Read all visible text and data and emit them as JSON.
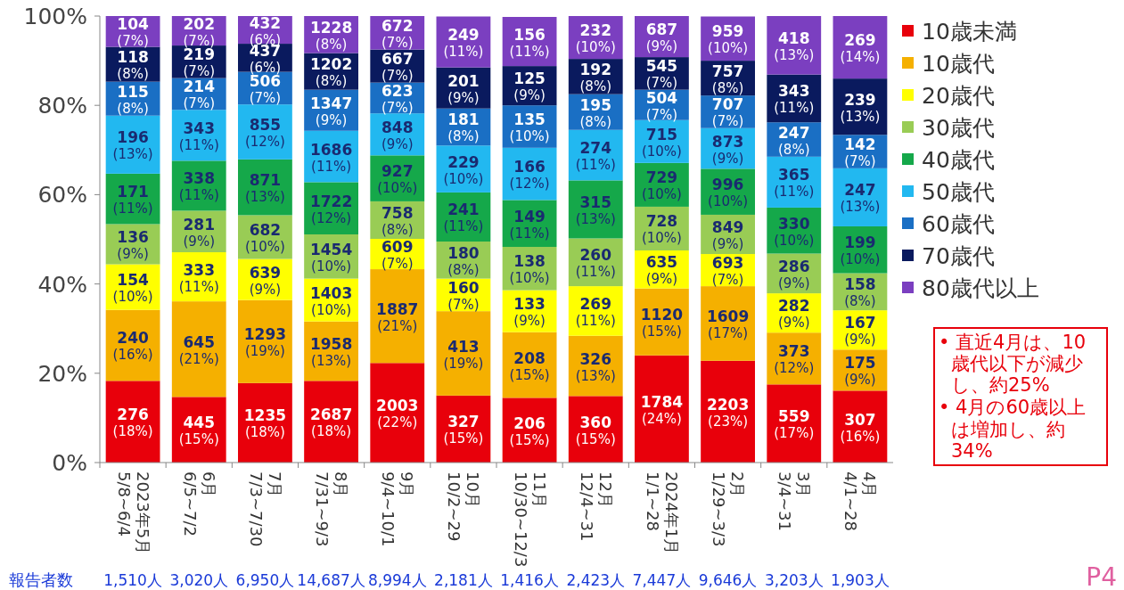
{
  "chart_data": {
    "type": "bar",
    "stacked": true,
    "data_labels": false,
    "legend": "top right",
    "grid": false,
    "categories": [
      "2023年5月\n5/8~6/4",
      "6月\n6/5~7/2",
      "7月\n7/3~7/30",
      "8月\n7/31~9/3",
      "9月\n9/4~10/1",
      "10月\n10/2~29",
      "11月\n10/30~12/3",
      "12月\n12/4~31",
      "2024年1月\n1/1~28",
      "2月\n1/29~3/3",
      "3月\n3/4~31",
      "4月\n4/1~28"
    ],
    "ylim": [
      0,
      100
    ],
    "yticks": [
      {
        "value": 0,
        "label": "0%"
      },
      {
        "value": 20,
        "label": "20%"
      },
      {
        "value": 40,
        "label": "40%"
      },
      {
        "value": 60,
        "label": "60%"
      },
      {
        "value": 80,
        "label": "80%"
      },
      {
        "value": 100,
        "label": "100%"
      }
    ],
    "series": [
      {
        "name": "10歳未満",
        "color": "#e8000b",
        "values": [
          18.3,
          14.7,
          17.8,
          18.3,
          22.3,
          15.0,
          14.5,
          14.9,
          24.0,
          22.8,
          17.5,
          16.1
        ],
        "value_labels": [
          "276 (18%)",
          "445 (15%)",
          "1235 (18%)",
          "2687 (18%)",
          "2003 (22%)",
          "327 (15%)",
          "206 (15%)",
          "360 (15%)",
          "1784 (24%)",
          "2203 (23%)",
          "559 (17%)",
          "307 (16%)"
        ]
      },
      {
        "name": "10歳代",
        "color": "#f5b000",
        "values": [
          15.9,
          21.4,
          18.6,
          13.3,
          21.0,
          18.9,
          14.7,
          13.5,
          15.0,
          16.7,
          11.6,
          9.2
        ],
        "value_labels": [
          "240 (16%)",
          "645 (21%)",
          "1293 (19%)",
          "1958 (13%)",
          "1887 (21%)",
          "413 (19%)",
          "208 (15%)",
          "326 (13%)",
          "1120 (15%)",
          "1609 (17%)",
          "373 (12%)",
          "175 (9%)"
        ]
      },
      {
        "name": "20歳代",
        "color": "#ffff00",
        "values": [
          10.2,
          11.0,
          9.2,
          9.6,
          6.8,
          7.3,
          9.4,
          11.1,
          8.5,
          7.2,
          8.8,
          8.8
        ],
        "value_labels": [
          "154 (10%)",
          "333 (11%)",
          "639 (9%)",
          "1403 (10%)",
          "609 (7%)",
          "160 (7%)",
          "133 (9%)",
          "269 (11%)",
          "635 (9%)",
          "693 (7%)",
          "282 (9%)",
          "167 (9%)"
        ]
      },
      {
        "name": "30歳代",
        "color": "#99cc55",
        "values": [
          9.0,
          9.3,
          9.8,
          9.9,
          8.4,
          8.3,
          9.7,
          10.7,
          9.8,
          8.8,
          8.9,
          8.3
        ],
        "value_labels": [
          "136 (9%)",
          "281 (9%)",
          "682 (10%)",
          "1454 (10%)",
          "758 (8%)",
          "180 (8%)",
          "138 (10%)",
          "260 (11%)",
          "728 (10%)",
          "849 (9%)",
          "286 (9%)",
          "158 (8%)"
        ]
      },
      {
        "name": "40歳代",
        "color": "#15a84a",
        "values": [
          11.3,
          11.2,
          12.5,
          11.7,
          10.3,
          11.0,
          10.5,
          13.0,
          9.8,
          10.3,
          10.3,
          10.5
        ],
        "value_labels": [
          "171 (11%)",
          "338 (11%)",
          "871 (13%)",
          "1722 (12%)",
          "927 (10%)",
          "241 (11%)",
          "149 (11%)",
          "315 (13%)",
          "729 (10%)",
          "996 (10%)",
          "330 (10%)",
          "199 (10%)"
        ]
      },
      {
        "name": "50歳代",
        "color": "#22b8f0",
        "values": [
          13.0,
          11.4,
          12.3,
          11.5,
          9.4,
          10.5,
          11.7,
          11.3,
          9.6,
          9.1,
          11.4,
          13.0
        ],
        "value_labels": [
          "196 (13%)",
          "343 (11%)",
          "855 (12%)",
          "1686 (11%)",
          "848 (9%)",
          "229 (10%)",
          "166 (12%)",
          "274 (11%)",
          "715 (10%)",
          "873 (9%)",
          "365 (11%)",
          "247 (13%)"
        ]
      },
      {
        "name": "60歳代",
        "color": "#1a6fc4",
        "values": [
          7.6,
          7.1,
          7.3,
          9.2,
          6.9,
          8.3,
          9.5,
          8.0,
          6.8,
          7.3,
          7.7,
          7.5
        ],
        "value_labels": [
          "115 (8%)",
          "214 (7%)",
          "506 (7%)",
          "1347 (9%)",
          "623 (7%)",
          "181 (8%)",
          "135 (10%)",
          "195 (8%)",
          "504 (7%)",
          "707 (7%)",
          "247 (8%)",
          "142 (7%)"
        ]
      },
      {
        "name": "70歳代",
        "color": "#0a1a5e",
        "values": [
          7.8,
          7.3,
          6.3,
          8.2,
          7.4,
          9.2,
          8.8,
          7.9,
          7.3,
          7.8,
          10.7,
          12.6
        ],
        "value_labels": [
          "118 (8%)",
          "219 (7%)",
          "437 (6%)",
          "1202 (8%)",
          "667 (7%)",
          "201 (9%)",
          "125 (9%)",
          "192 (8%)",
          "545 (7%)",
          "757 (8%)",
          "343 (11%)",
          "239 (13%)"
        ]
      },
      {
        "name": "80歳代以上",
        "color": "#7b3fc0",
        "values": [
          6.9,
          6.6,
          6.2,
          8.3,
          7.5,
          11.4,
          11.0,
          9.6,
          9.2,
          9.9,
          13.1,
          14.0
        ],
        "value_labels": [
          "104 (7%)",
          "202 (7%)",
          "432 (6%)",
          "1228 (8%)",
          "672 (7%)",
          "249 (11%)",
          "156 (11%)",
          "232 (10%)",
          "687 (9%)",
          "959 (10%)",
          "418 (13%)",
          "269 (14%)"
        ]
      }
    ],
    "annotations": [
      "報告者数",
      "• 直近4月は、10歳代以下が減少し、約25%",
      "• 4月の60歳以上は増加し、約34%",
      "P4",
      "1,510人",
      "3,020人",
      "6,950人",
      "14,687人",
      "8,994人",
      "2,181人",
      "1,416人",
      "2,423人",
      "7,447人",
      "9,646人",
      "3,203人",
      "1,903人"
    ]
  }
}
